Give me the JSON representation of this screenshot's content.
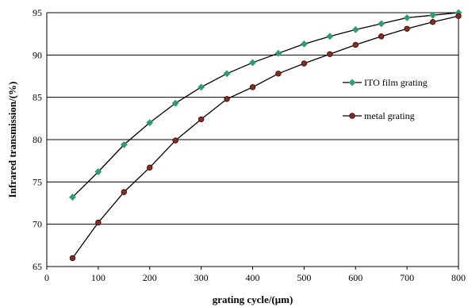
{
  "chart_data": {
    "type": "line",
    "xlabel": "grating cycle/(μm)",
    "ylabel": "Infrared transmission/(%)",
    "xlim": [
      0,
      800
    ],
    "ylim": [
      65,
      95
    ],
    "x_ticks": [
      0,
      100,
      200,
      300,
      400,
      500,
      600,
      700,
      800
    ],
    "y_ticks": [
      65,
      70,
      75,
      80,
      85,
      90,
      95
    ],
    "grid": "horizontal",
    "legend_position": "right",
    "x": [
      50,
      100,
      150,
      200,
      250,
      300,
      350,
      400,
      450,
      500,
      550,
      600,
      650,
      700,
      750,
      800
    ],
    "series": [
      {
        "name": "ITO film grating",
        "marker": "diamond",
        "marker_color": "#2e9e6e",
        "values": [
          73.2,
          76.2,
          79.4,
          82.0,
          84.3,
          86.2,
          87.8,
          89.1,
          90.2,
          91.3,
          92.2,
          93.0,
          93.7,
          94.4,
          94.7,
          95.0
        ]
      },
      {
        "name": "metal grating",
        "marker": "circle",
        "marker_color": "#8b2a20",
        "values": [
          66.0,
          70.2,
          73.8,
          76.7,
          79.9,
          82.4,
          84.8,
          86.2,
          87.8,
          89.0,
          90.1,
          91.2,
          92.2,
          93.1,
          93.9,
          94.6
        ]
      }
    ]
  }
}
